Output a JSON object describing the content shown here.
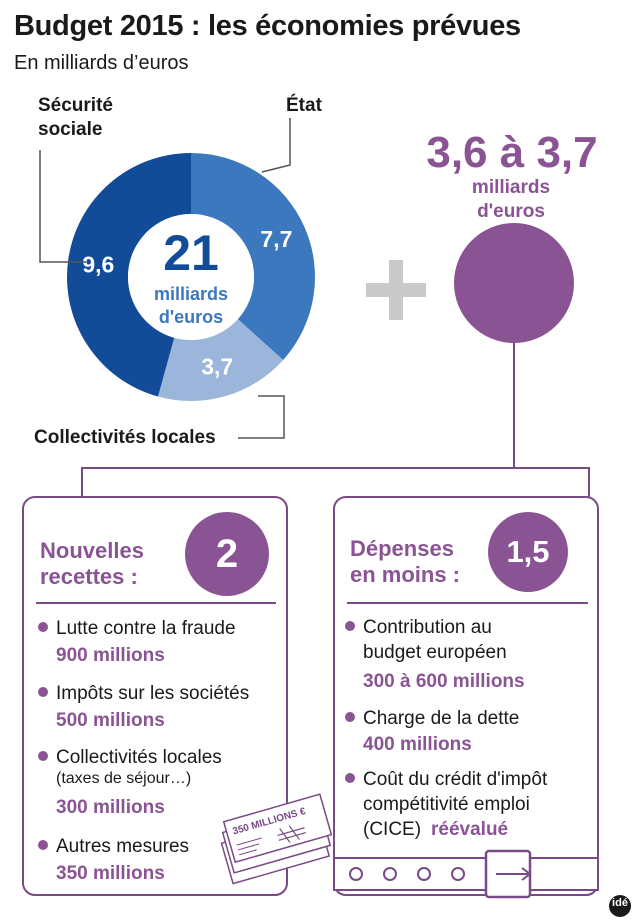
{
  "header": {
    "title": "Budget 2015 : les économies prévues",
    "subtitle": "En milliards d’euros"
  },
  "chart_data": {
    "type": "pie",
    "categories": [
      "État",
      "Collectivités locales",
      "Sécurité sociale"
    ],
    "values": [
      7.7,
      3.7,
      9.6
    ],
    "value_labels": [
      "7,7",
      "3,7",
      "9,6"
    ],
    "colors": [
      "#3b78bd",
      "#9bb6da",
      "#124c99"
    ],
    "center_value": "21",
    "center_unit_line1": "milliards",
    "center_unit_line2": "d'euros",
    "label_secu_line1": "Sécurité",
    "label_secu_line2": "sociale",
    "label_etat": "État",
    "label_coll": "Collectivités locales"
  },
  "plus_sign": "+",
  "extra": {
    "range": "3,6 à 3,7",
    "unit_line1": "milliards",
    "unit_line2": "d'euros"
  },
  "left_box": {
    "title_line1": "Nouvelles",
    "title_line2": "recettes :",
    "number": "2",
    "items": [
      {
        "label": "Lutte contre la fraude",
        "amount": "900 millions"
      },
      {
        "label": "Impôts sur les sociétés",
        "amount": "500 millions"
      },
      {
        "label": "Collectivités locales",
        "note": "(taxes de séjour…)",
        "amount": "300 millions"
      },
      {
        "label": "Autres mesures",
        "amount": "350 millions"
      }
    ],
    "banknote_text": "350 MILLIONS €"
  },
  "right_box": {
    "title_line1": "Dépenses",
    "title_line2": "en moins :",
    "number": "1,5",
    "items": [
      {
        "label_line1": "Contribution au",
        "label_line2": "budget européen",
        "amount": "300 à 600 millions"
      },
      {
        "label_line1": "Charge de la dette",
        "amount": "400 millions"
      },
      {
        "label_line1": "Coût du crédit d'impôt",
        "label_line2": "compétitivité emploi",
        "label_line3": "(CICE)",
        "amount": "réévalué"
      }
    ]
  },
  "logo": "idé",
  "colors": {
    "purple": "#8a5494",
    "box_border": "#7a4a86",
    "dark_blue": "#124c99",
    "mid_blue": "#3b78bd",
    "light_blue": "#9bb6da",
    "grey": "#c9c9c9"
  }
}
